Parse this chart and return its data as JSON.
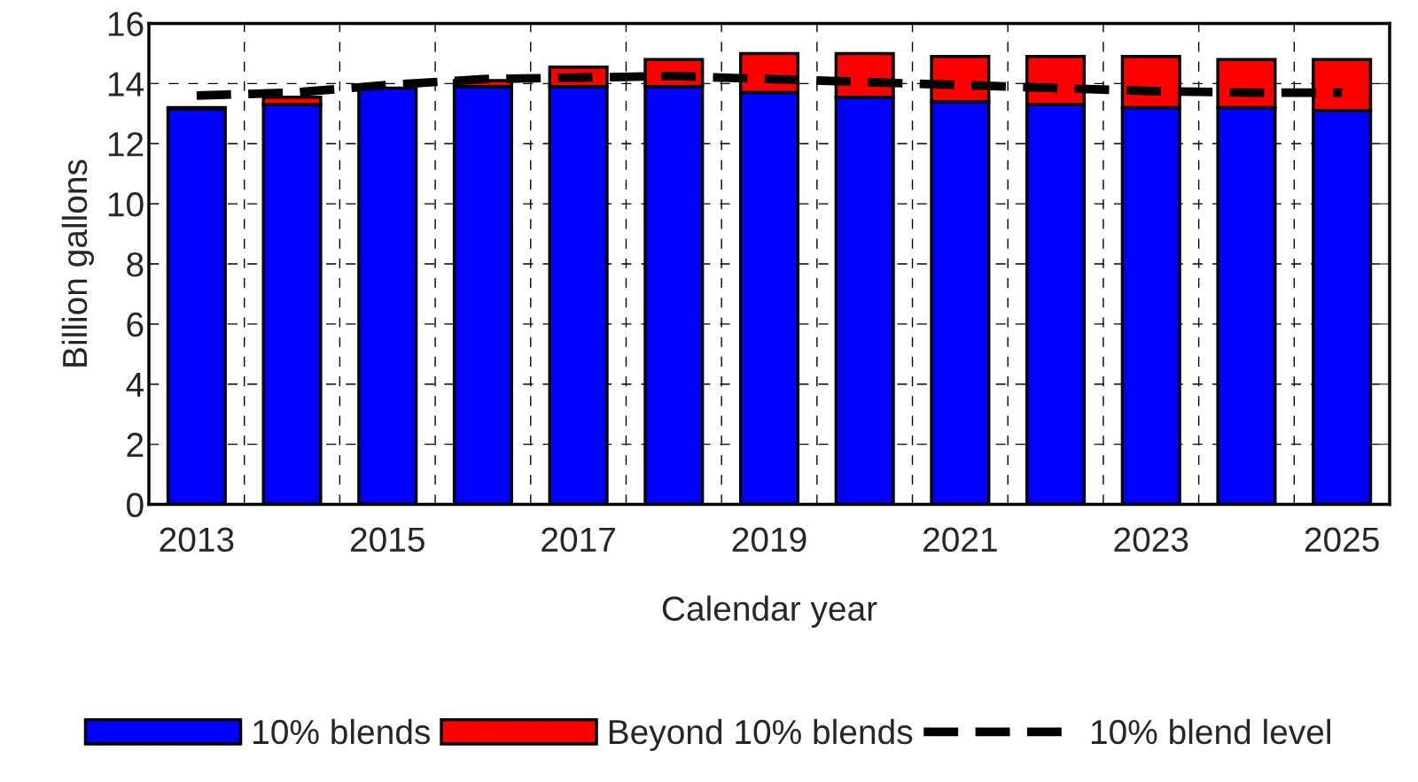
{
  "chart_data": {
    "type": "bar",
    "stacked": true,
    "xlabel": "Calendar year",
    "ylabel": "Billion gallons",
    "categories": [
      "2013",
      null,
      "2015",
      null,
      "2017",
      null,
      "2019",
      null,
      "2021",
      null,
      "2023",
      null,
      "2025"
    ],
    "series": [
      {
        "name": "10% blends",
        "color": "#0000ff",
        "values": [
          13.15,
          13.3,
          13.85,
          13.9,
          13.9,
          13.9,
          13.7,
          13.55,
          13.4,
          13.3,
          13.2,
          13.2,
          13.1
        ]
      },
      {
        "name": "Beyond 10% blends",
        "color": "#ff0000",
        "values": [
          0.05,
          0.25,
          null,
          0.2,
          0.65,
          0.9,
          1.3,
          1.45,
          1.5,
          1.6,
          1.7,
          1.6,
          1.7
        ]
      },
      {
        "name": "10% blend level",
        "type": "line",
        "color": "#000000",
        "line_style": "dashed",
        "values": [
          13.6,
          13.7,
          13.95,
          14.15,
          14.2,
          14.25,
          14.15,
          14.05,
          13.95,
          13.85,
          13.75,
          13.7,
          13.7
        ]
      }
    ],
    "ylim": [
      0,
      16
    ],
    "yticks": [
      0,
      2,
      4,
      6,
      8,
      10,
      12,
      14,
      16
    ],
    "grid": true,
    "legend": "bottom"
  }
}
